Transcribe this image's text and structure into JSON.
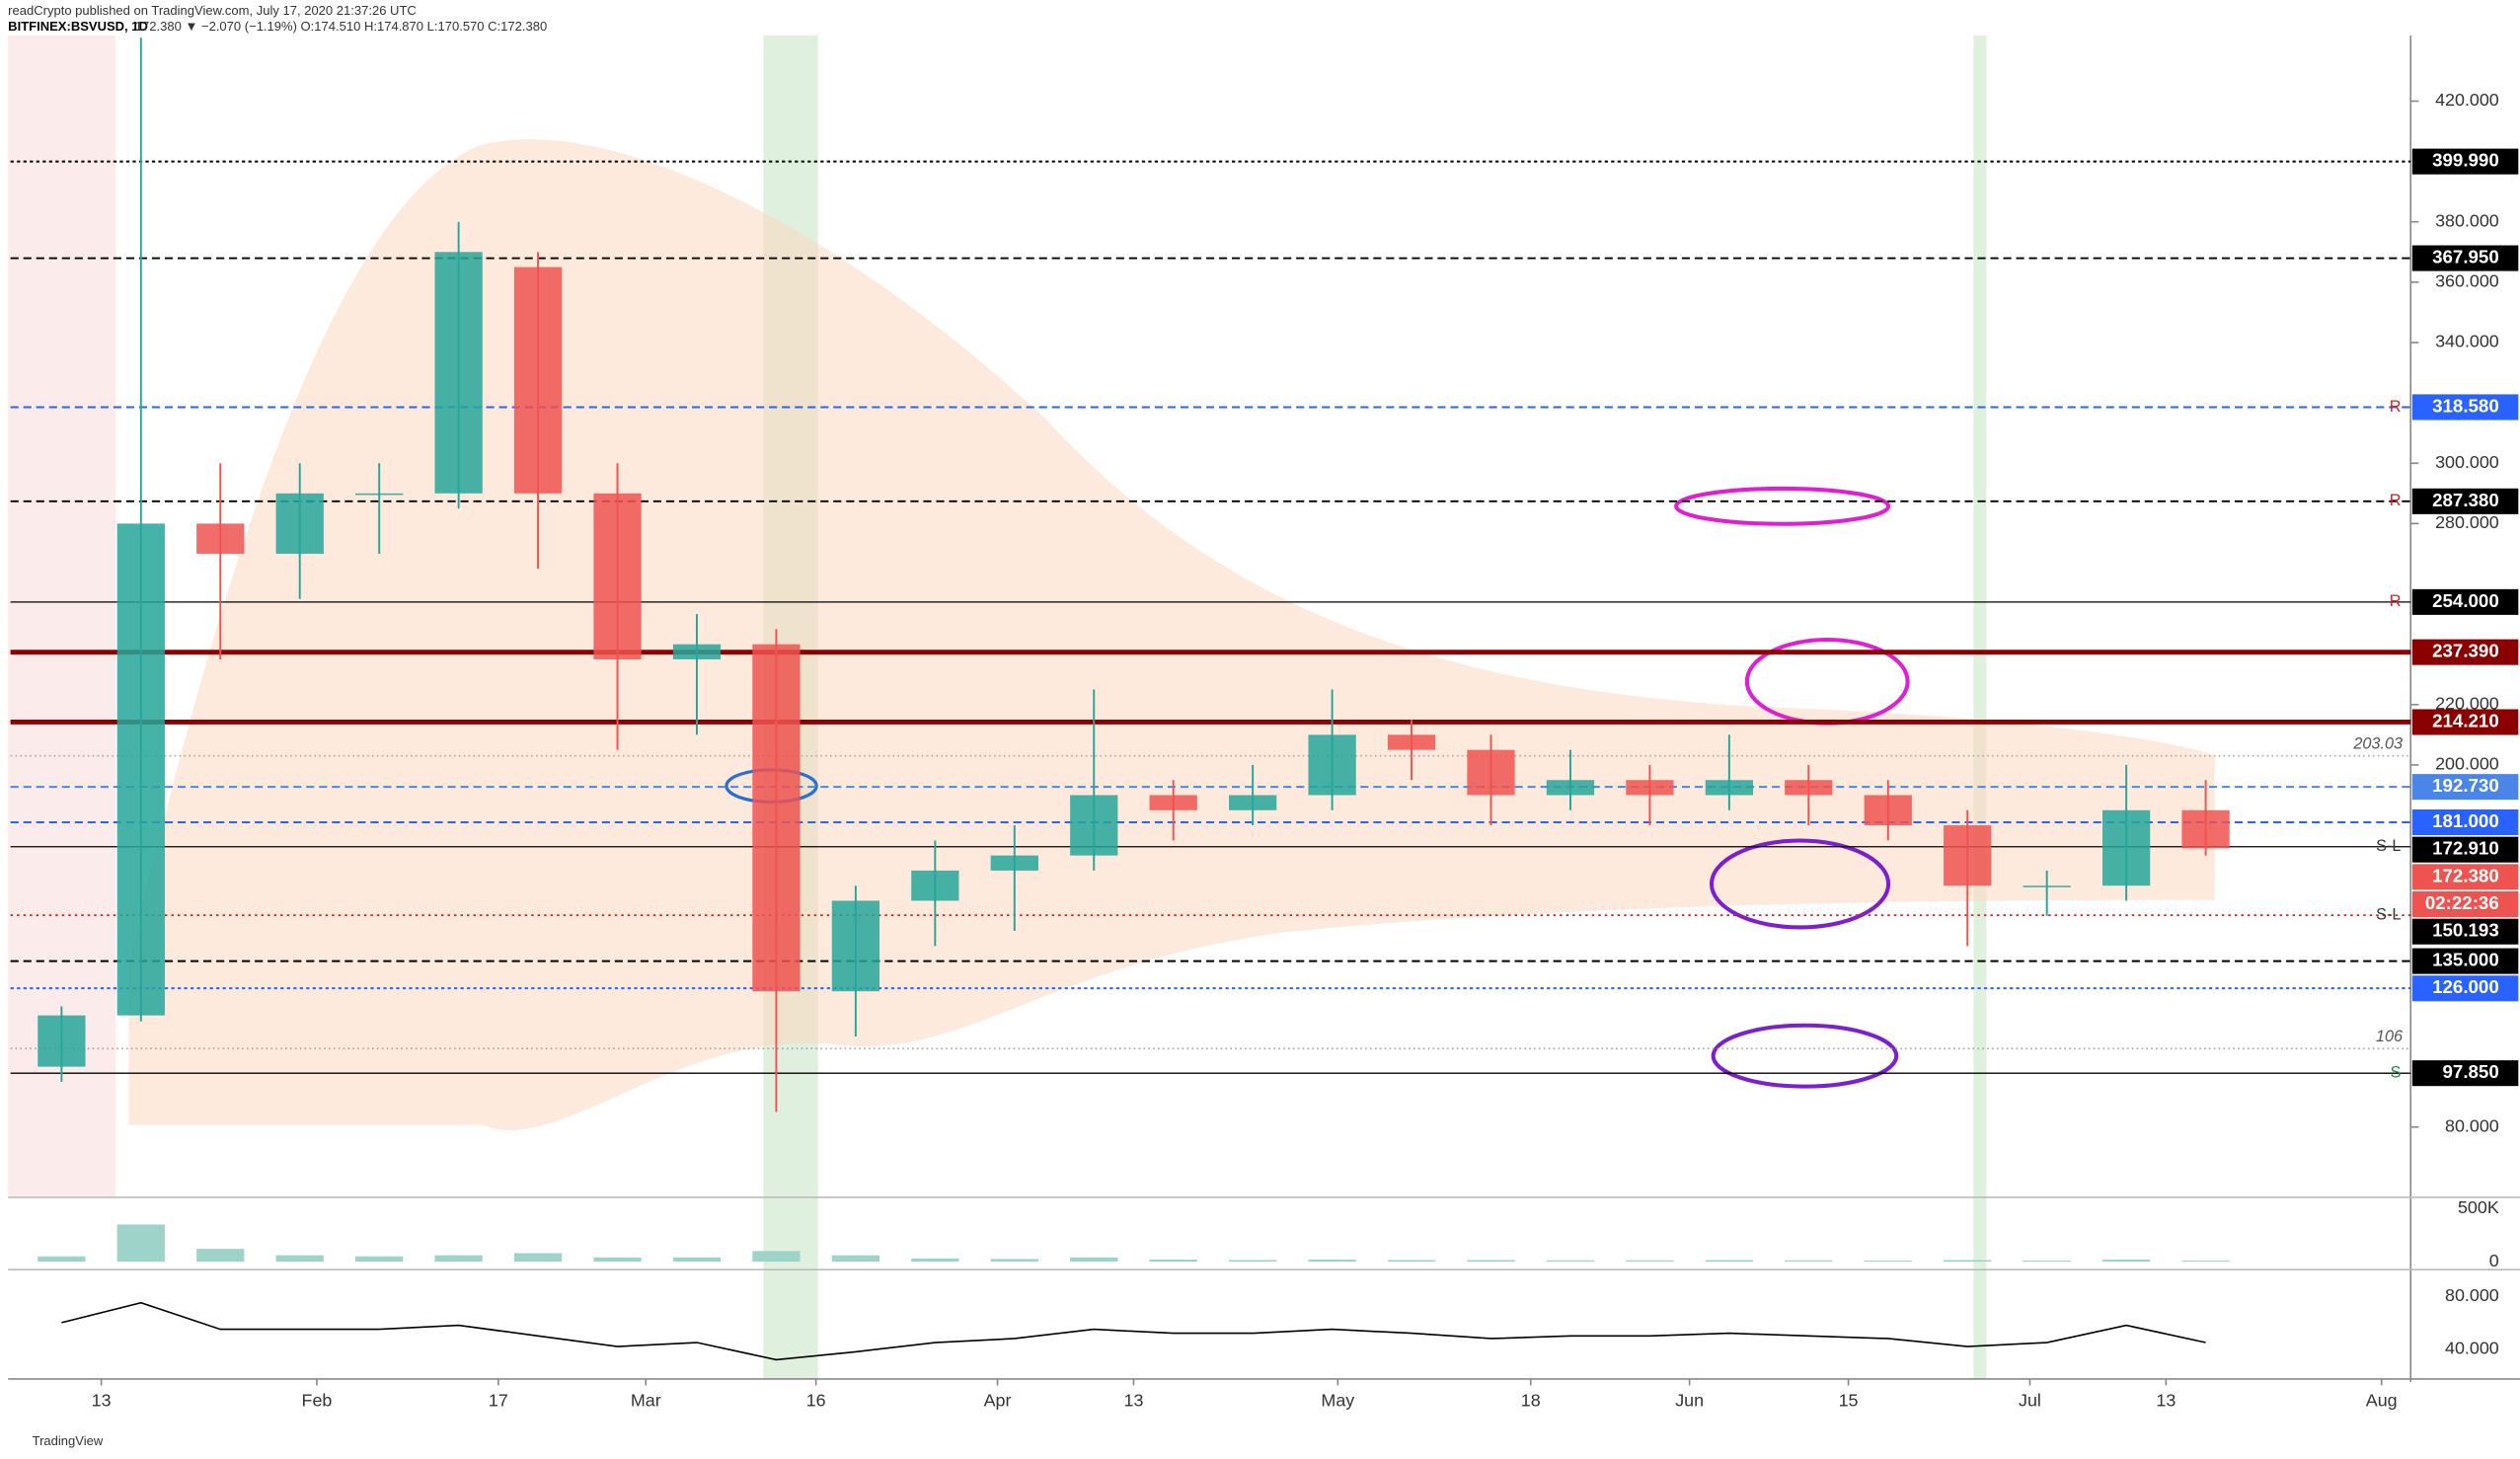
{
  "header": {
    "publisher": "readCrypto published on TradingView.com, July 17, 2020 21:37:26 UTC",
    "symbol": "BITFINEX:BSVUSD, 1D",
    "legend": "172.380 ▼ −2.070 (−1.19%) O:174.510 H:174.870 L:170.570 C:172.380"
  },
  "footer": "TradingView",
  "chart_data": {
    "type": "candlestick",
    "x": [
      "2020-01-06",
      "2020-01-13",
      "2020-01-20",
      "2020-01-27",
      "2020-02-03",
      "2020-02-10",
      "2020-02-17",
      "2020-02-24",
      "2020-03-02",
      "2020-03-09",
      "2020-03-16",
      "2020-03-23",
      "2020-03-30",
      "2020-04-06",
      "2020-04-13",
      "2020-04-20",
      "2020-04-27",
      "2020-05-04",
      "2020-05-11",
      "2020-05-18",
      "2020-05-25",
      "2020-06-01",
      "2020-06-08",
      "2020-06-15",
      "2020-06-22",
      "2020-06-29",
      "2020-07-06",
      "2020-07-13"
    ],
    "open": [
      100,
      117,
      280,
      270,
      290,
      290,
      365,
      290,
      235,
      240,
      125,
      155,
      165,
      170,
      190,
      185,
      190,
      210,
      205,
      190,
      195,
      190,
      195,
      190,
      180,
      160,
      160,
      185
    ],
    "high": [
      120,
      441,
      300,
      300,
      300,
      380,
      370,
      300,
      250,
      245,
      160,
      175,
      180,
      225,
      195,
      200,
      225,
      215,
      210,
      205,
      200,
      210,
      200,
      195,
      185,
      165,
      200,
      195
    ],
    "low": [
      95,
      115,
      235,
      255,
      270,
      285,
      265,
      205,
      210,
      85,
      110,
      140,
      145,
      165,
      175,
      180,
      185,
      195,
      180,
      185,
      180,
      185,
      180,
      175,
      140,
      150,
      155,
      170
    ],
    "close": [
      117,
      280,
      270,
      290,
      290,
      370,
      290,
      235,
      240,
      125,
      155,
      165,
      170,
      190,
      185,
      190,
      210,
      205,
      190,
      195,
      190,
      195,
      190,
      180,
      160,
      160,
      185,
      172.38
    ],
    "up_color": "#26a69a",
    "down_color": "#ef5350",
    "xlim": [
      "2020-01-05",
      "2020-08-03"
    ],
    "xticks": [
      {
        "value": "2020-01-13",
        "label": "13"
      },
      {
        "value": "2020-02-01",
        "label": "Feb"
      },
      {
        "value": "2020-02-17",
        "label": "17"
      },
      {
        "value": "2020-03-01",
        "label": "Mar"
      },
      {
        "value": "2020-03-16",
        "label": "16"
      },
      {
        "value": "2020-04-01",
        "label": "Apr"
      },
      {
        "value": "2020-04-13",
        "label": "13"
      },
      {
        "value": "2020-05-01",
        "label": "May"
      },
      {
        "value": "2020-05-18",
        "label": "18"
      },
      {
        "value": "2020-06-01",
        "label": "Jun"
      },
      {
        "value": "2020-06-15",
        "label": "15"
      },
      {
        "value": "2020-07-01",
        "label": "Jul"
      },
      {
        "value": "2020-07-13",
        "label": "13"
      },
      {
        "value": "2020-08-01",
        "label": "Aug"
      }
    ],
    "ylim": [
      56.7,
      441.8
    ],
    "yticks": [
      {
        "value": 420,
        "label": "420.000"
      },
      {
        "value": 380,
        "label": "380.000"
      },
      {
        "value": 360,
        "label": "360.000"
      },
      {
        "value": 340,
        "label": "340.000"
      },
      {
        "value": 300,
        "label": "300.000"
      },
      {
        "value": 280,
        "label": "280.000"
      },
      {
        "value": 220,
        "label": "220.000"
      },
      {
        "value": 200,
        "label": "200.000"
      },
      {
        "value": 80,
        "label": "80.000"
      }
    ],
    "price_lines": [
      {
        "value": 399.99,
        "label": "399.990",
        "color": "#000000",
        "style": "dotted"
      },
      {
        "value": 367.95,
        "label": "367.950",
        "color": "#000000",
        "style": "dashed"
      },
      {
        "value": 318.58,
        "label": "318.580",
        "color": "#2962ff",
        "style": "dashed",
        "tag": "R"
      },
      {
        "value": 287.38,
        "label": "287.380",
        "color": "#000000",
        "style": "dashed",
        "tag": "R"
      },
      {
        "value": 254,
        "label": "254.000",
        "color": "#000000",
        "style": "solid",
        "tag": "R"
      },
      {
        "value": 237.39,
        "label": "237.390",
        "color": "#8b0000",
        "style": "thick"
      },
      {
        "value": 214.21,
        "label": "214.210",
        "color": "#8b0000",
        "style": "thick"
      },
      {
        "value": 192.73,
        "label": "192.730",
        "color": "#4a86e8",
        "style": "dashed"
      },
      {
        "value": 181,
        "label": "181.000",
        "color": "#2962ff",
        "style": "dashed"
      },
      {
        "value": 172.91,
        "label": "172.910",
        "color": "#000000",
        "style": "solid",
        "tag": "S-L"
      },
      {
        "value": 150.193,
        "label": "150.193",
        "color": "#000000",
        "style": "dotted-red",
        "tag": "S-L"
      },
      {
        "value": 135,
        "label": "135.000",
        "color": "#000000",
        "style": "dashed"
      },
      {
        "value": 126,
        "label": "126.000",
        "color": "#2962ff",
        "style": "dotted"
      },
      {
        "value": 97.85,
        "label": "97.850",
        "color": "#000000",
        "style": "solid",
        "tag": "S"
      }
    ],
    "last_price": {
      "value": 172.38,
      "label": "172.380",
      "color": "#ef5350",
      "countdown": "02:22:36"
    },
    "marked_levels": [
      203.03,
      106
    ],
    "volume": {
      "values": [
        50000,
        350000,
        120000,
        60000,
        50000,
        60000,
        80000,
        40000,
        40000,
        100000,
        60000,
        30000,
        25000,
        40000,
        20000,
        15000,
        20000,
        15000,
        15000,
        12000,
        12000,
        15000,
        12000,
        10000,
        15000,
        10000,
        20000,
        10000
      ],
      "ylim": [
        -75700,
        606000
      ],
      "yticks": [
        {
          "value": 500000,
          "label": "500K"
        },
        0
      ],
      "color": "#9ed3c9"
    },
    "rsi": {
      "values": [
        60,
        75,
        55,
        55,
        55,
        58,
        50,
        42,
        45,
        32,
        38,
        45,
        48,
        55,
        52,
        52,
        55,
        52,
        48,
        50,
        50,
        52,
        50,
        48,
        42,
        45,
        58,
        45
      ],
      "ylim": [
        17.5,
        100
      ],
      "yticks": [
        {
          "value": 80,
          "label": "80.000"
        },
        {
          "value": 40,
          "label": "40.000"
        }
      ],
      "color": "#000000"
    }
  }
}
